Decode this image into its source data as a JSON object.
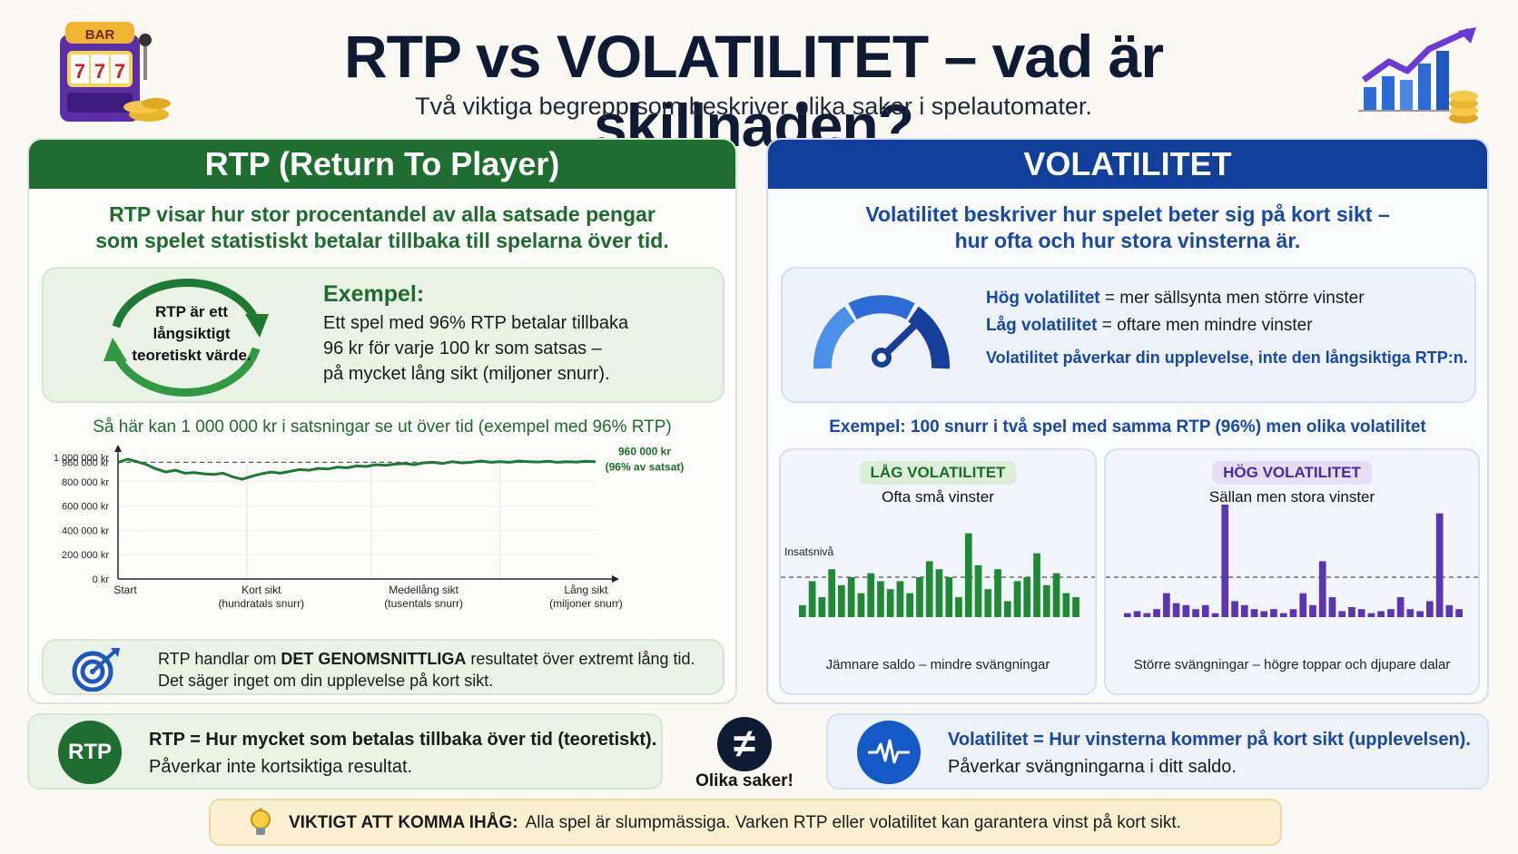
{
  "header": {
    "title": "RTP vs VOLATILITET – vad är skillnaden?",
    "subtitle": "Två viktiga begrepp som beskriver olika saker i spelautomater.",
    "slot_sign": "BAR",
    "slot_symbols": [
      "7",
      "7",
      "7"
    ]
  },
  "rtp": {
    "header": "RTP (Return To Player)",
    "lead_1": "RTP visar hur stor procentandel av alla satsade pengar",
    "lead_2": "som spelet statistiskt betalar tillbaka till spelarna över tid.",
    "cycle_text_1": "RTP är ett",
    "cycle_text_2": "långsiktigt",
    "cycle_text_3": "teoretiskt värde.",
    "example_title": "Exempel:",
    "example_1": "Ett spel med 96% RTP betalar tillbaka",
    "example_2": "96 kr för varje 100 kr som satsas –",
    "example_3": "på mycket lång sikt (miljoner snurr).",
    "chart_title": "Så här kan 1 000 000 kr i satsningar se ut över tid (exempel med 96% RTP)",
    "note_1_pre": "RTP handlar om ",
    "note_1_bold": "DET GENOMSNITTLIGA",
    "note_1_post": " resultatet över extremt lång tid.",
    "note_2": "Det säger inget om din upplevelse på kort sikt."
  },
  "volatility": {
    "header": "VOLATILITET",
    "lead_1": "Volatilitet beskriver hur spelet beter sig på kort sikt –",
    "lead_2": "hur ofta och hur stora vinsterna är.",
    "high_term": "Hög volatilitet",
    "high_desc": " = mer sällsynta men större vinster",
    "low_term": "Låg volatilitet",
    "low_desc": " = oftare men mindre vinster",
    "note": "Volatilitet påverkar din upplevelse, inte den långsiktiga RTP:n.",
    "example_title": "Exempel: 100 snurr i två spel med samma RTP (96%) men olika volatilitet",
    "low_badge": "LÅG VOLATILITET",
    "low_sub": "Ofta små vinster",
    "low_foot": "Jämnare saldo – mindre svängningar",
    "stake_label": "Insatsnivå",
    "high_badge": "HÖG VOLATILITET",
    "high_sub": "Sällan men stora vinster",
    "high_foot": "Större svängningar – högre toppar och djupare dalar"
  },
  "summary": {
    "rtp_badge": "RTP",
    "rtp_bold": "RTP = Hur mycket som betalas tillbaka över tid (teoretiskt).",
    "rtp_text": "Påverkar inte kortsiktiga resultat.",
    "neq_symbol": "≠",
    "neq_label": "Olika saker!",
    "vol_bold": "Volatilitet = Hur vinsterna kommer på kort sikt (upplevelsen).",
    "vol_text": "Påverkar svängningarna i ditt saldo."
  },
  "reminder": {
    "bold": "VIKTIGT ATT KOMMA IHÅG:",
    "text": "Alla spel är slumpmässiga. Varken RTP eller volatilitet kan garantera vinst på kort sikt."
  },
  "colors": {
    "rtp_green": "#1e6e2f",
    "vol_blue": "#103f9b",
    "low_bars": "#1e8a34",
    "high_bars": "#5b35b5"
  },
  "chart_data": [
    {
      "type": "line",
      "ylim": [
        0,
        1000000
      ],
      "y_ticks": [
        0,
        200000,
        400000,
        600000,
        800000,
        960000,
        1000000
      ],
      "y_tick_labels": [
        "0 kr",
        "200 000 kr",
        "400 000 kr",
        "600 000 kr",
        "800 000 kr",
        "960 000 kr",
        "1 000 000 kr"
      ],
      "x_tick_labels": [
        {
          "label": "Start",
          "sub": ""
        },
        {
          "label": "Kort sikt",
          "sub": "(hundratals snurr)"
        },
        {
          "label": "Medellång sikt",
          "sub": "(tusentals snurr)"
        },
        {
          "label": "Lång sikt",
          "sub": "(miljoner snurr)"
        }
      ],
      "reference_value": 960000,
      "reference_label_1": "960 000 kr",
      "reference_label_2": "(96% av satsat)",
      "x": [
        0,
        0.02,
        0.04,
        0.06,
        0.08,
        0.1,
        0.12,
        0.14,
        0.16,
        0.18,
        0.2,
        0.22,
        0.24,
        0.26,
        0.28,
        0.3,
        0.32,
        0.34,
        0.36,
        0.38,
        0.4,
        0.42,
        0.44,
        0.46,
        0.48,
        0.5,
        0.52,
        0.54,
        0.56,
        0.58,
        0.6,
        0.62,
        0.64,
        0.66,
        0.68,
        0.7,
        0.72,
        0.74,
        0.76,
        0.78,
        0.8,
        0.82,
        0.84,
        0.86,
        0.88,
        0.9,
        0.92,
        0.94,
        0.96,
        0.98,
        1.0
      ],
      "values": [
        960000,
        985000,
        965000,
        940000,
        905000,
        880000,
        895000,
        870000,
        875000,
        865000,
        860000,
        870000,
        840000,
        820000,
        845000,
        865000,
        880000,
        870000,
        885000,
        900000,
        895000,
        910000,
        905000,
        920000,
        915000,
        930000,
        925000,
        940000,
        935000,
        945000,
        950000,
        940000,
        955000,
        960000,
        950000,
        965000,
        955000,
        960000,
        970000,
        960000,
        965000,
        960000,
        970000,
        965000,
        962000,
        968000,
        960000,
        965000,
        962000,
        968000,
        965000
      ]
    },
    {
      "type": "bar",
      "title": "LÅG VOLATILITET",
      "stake_level": 1.0,
      "values": [
        0.3,
        0.9,
        0.5,
        1.2,
        0.8,
        1.0,
        0.6,
        1.1,
        0.9,
        0.7,
        0.9,
        0.6,
        1.0,
        1.4,
        1.2,
        1.0,
        0.5,
        2.1,
        1.3,
        0.7,
        1.2,
        0.4,
        0.9,
        1.0,
        1.6,
        0.8,
        1.1,
        0.6,
        0.5
      ]
    },
    {
      "type": "bar",
      "title": "HÖG VOLATILITET",
      "stake_level": 1.0,
      "values": [
        0.1,
        0.15,
        0.1,
        0.2,
        0.6,
        0.35,
        0.3,
        0.2,
        0.3,
        0.1,
        3.0,
        0.4,
        0.3,
        0.2,
        0.15,
        0.2,
        0.1,
        0.2,
        0.6,
        0.3,
        1.4,
        0.5,
        0.15,
        0.25,
        0.2,
        0.1,
        0.15,
        0.2,
        0.5,
        0.2,
        0.15,
        0.4,
        2.6,
        0.3,
        0.2
      ]
    }
  ]
}
